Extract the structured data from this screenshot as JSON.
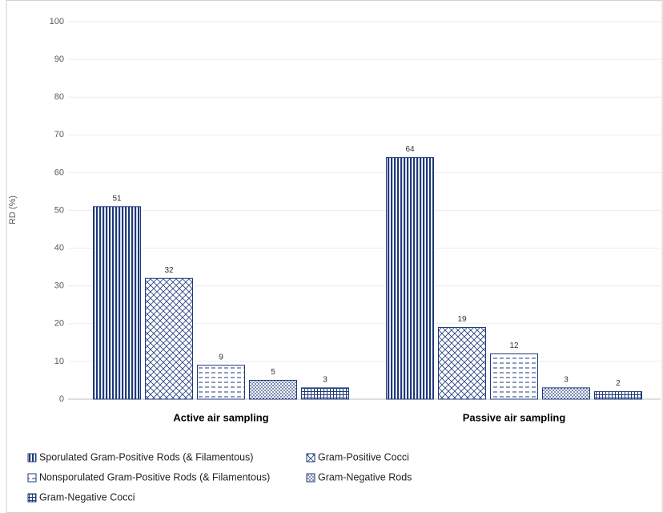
{
  "chart_data": {
    "type": "bar",
    "ylabel": "RD (%)",
    "categories": [
      "Active air sampling",
      "Passive air sampling"
    ],
    "series": [
      {
        "name": "Sporulated Gram-Positive Rods (& Filamentous)",
        "color": "#1f3a7a",
        "pattern": "vertical",
        "values": [
          51,
          64
        ]
      },
      {
        "name": "Gram-Positive Cocci",
        "color": "#1f3a7a",
        "pattern": "crosshatch",
        "values": [
          32,
          19
        ]
      },
      {
        "name": "Nonsporulated Gram-Positive Rods (& Filamentous)",
        "color": "#1f3a7a",
        "pattern": "dashes",
        "values": [
          9,
          12
        ]
      },
      {
        "name": "Gram-Negative Rods",
        "color": "#1f3a7a",
        "pattern": "dots",
        "values": [
          5,
          3
        ]
      },
      {
        "name": "Gram-Negative Cocci",
        "color": "#1f3a7a",
        "pattern": "grid",
        "values": [
          3,
          2
        ]
      }
    ],
    "ylim": [
      0,
      100
    ],
    "yticks": [
      0,
      10,
      20,
      30,
      40,
      50,
      60,
      70,
      80,
      90,
      100
    ],
    "grid": true,
    "legend": "bottom"
  }
}
